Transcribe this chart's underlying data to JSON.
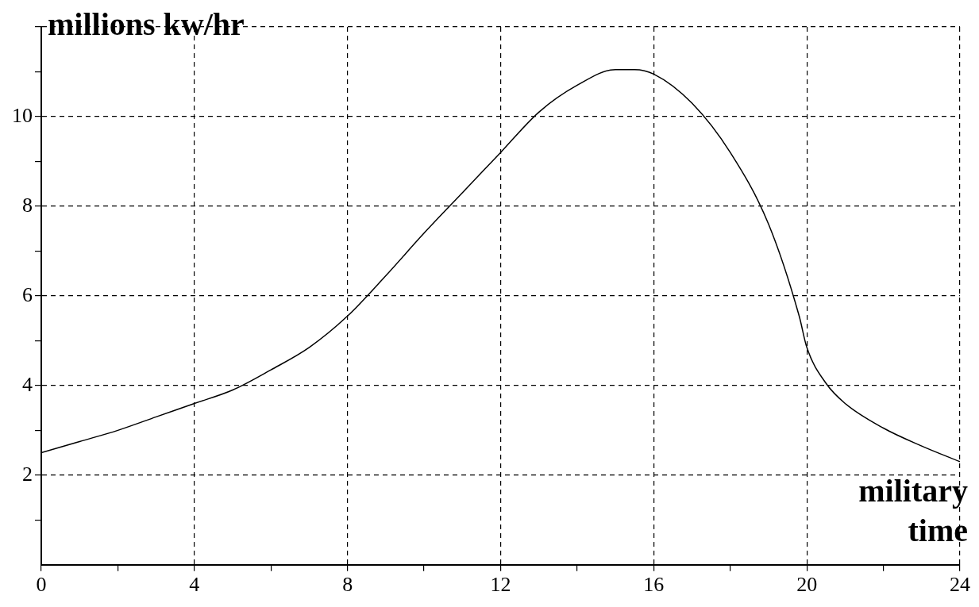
{
  "chart_data": {
    "type": "line",
    "xlabel": "military time",
    "ylabel": "millions kw/hr",
    "x": [
      0,
      1,
      2,
      3,
      4,
      5,
      6,
      7,
      8,
      9,
      10,
      11,
      12,
      13,
      14,
      15,
      15.5,
      16,
      17,
      18,
      19,
      19.8,
      20,
      20.5,
      21,
      22,
      23,
      24
    ],
    "series": [
      {
        "color": "#000000",
        "values": [
          2.5,
          2.75,
          3.0,
          3.3,
          3.6,
          3.9,
          4.35,
          4.85,
          5.55,
          6.45,
          7.4,
          8.3,
          9.2,
          10.1,
          10.7,
          11.05,
          11.05,
          10.95,
          10.3,
          9.2,
          7.6,
          5.55,
          4.85,
          4.05,
          3.6,
          3.05,
          2.65,
          2.3
        ]
      }
    ],
    "xlim": [
      0,
      24
    ],
    "ylim": [
      0,
      12
    ],
    "xticks": [
      0,
      {
        "value": 2,
        "label": null
      },
      4,
      {
        "value": 6,
        "label": null
      },
      8,
      {
        "value": 10,
        "label": null
      },
      12,
      {
        "value": 14,
        "label": null
      },
      16,
      {
        "value": 18,
        "label": null
      },
      20,
      {
        "value": 22,
        "label": null
      },
      24
    ],
    "yticks": [
      {
        "value": 1,
        "label": null
      },
      2,
      {
        "value": 3,
        "label": null
      },
      4,
      {
        "value": 5,
        "label": null
      },
      6,
      {
        "value": 7,
        "label": null
      },
      8,
      {
        "value": 9,
        "label": null
      },
      10,
      {
        "value": 11,
        "label": null
      },
      {
        "value": 12,
        "label": null
      }
    ],
    "grid": true,
    "legend": false,
    "marker": "none",
    "line_style": "solid"
  }
}
